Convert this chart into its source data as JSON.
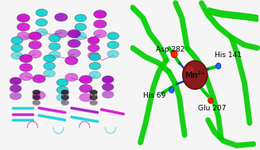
{
  "bg_color": "#f5f5f5",
  "left_bg": "#ffffff",
  "right_bg": "#ffffff",
  "title": "",
  "labels": {
    "asp": "Asp 282",
    "his69": "His 69",
    "his141": "His 141",
    "glu": "Glu 207",
    "mn": "Mn²⁺"
  },
  "mn_color": "#8B1A1A",
  "mn_edge_color": "#5a0a0a",
  "helix_colors": [
    "#CC00CC",
    "#00CED1",
    "#9400D3",
    "#40E0D0"
  ],
  "strand_color": "#00CED1",
  "loop_color": "#CC00CC",
  "green_ribbon": "#00CC00",
  "blue_stick": "#1E90FF",
  "red_atom": "#FF2200",
  "label_color": "#000000",
  "label_fontsize": 6.5
}
